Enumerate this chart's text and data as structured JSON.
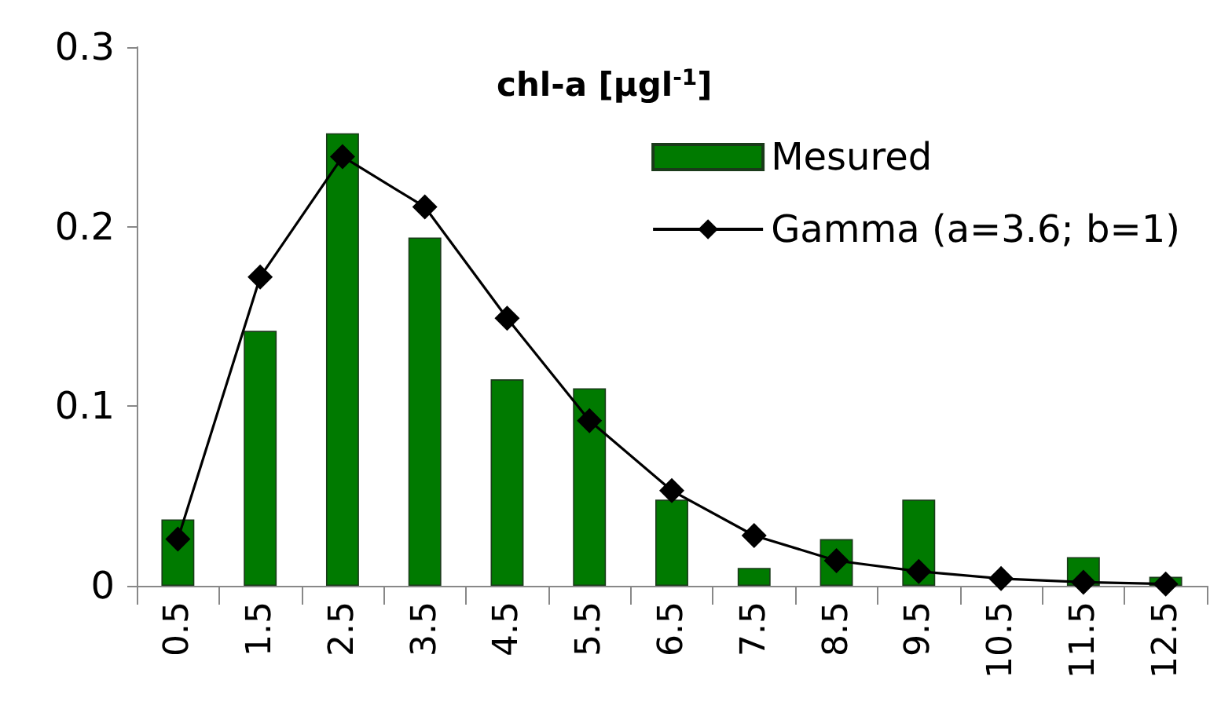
{
  "chart_data": {
    "type": "bar",
    "title": "chl-a [μgl$^{-1}$]",
    "categories": [
      "0.5",
      "1.5",
      "2.5",
      "3.5",
      "4.5",
      "5.5",
      "6.5",
      "7.5",
      "8.5",
      "9.5",
      "10.5",
      "11.5",
      "12.5"
    ],
    "series": [
      {
        "name": "Mesured",
        "color": "#007a00",
        "values": [
          0.037,
          0.142,
          0.252,
          0.194,
          0.115,
          0.11,
          0.048,
          0.01,
          0.026,
          0.048,
          0,
          0.016,
          0.005
        ]
      },
      {
        "name": "Gamma (a=3.6; b=1)",
        "type": "line",
        "color": "#000000",
        "marker": "diamond",
        "values": [
          0.026,
          0.172,
          0.239,
          0.211,
          0.149,
          0.092,
          0.053,
          0.028,
          0.014,
          0.008,
          0.004,
          0.002,
          0.001
        ]
      }
    ],
    "ylim": [
      0,
      0.3
    ],
    "yticks": [
      0,
      0.1,
      0.2,
      0.3
    ],
    "grid": false,
    "legend": "top right"
  }
}
